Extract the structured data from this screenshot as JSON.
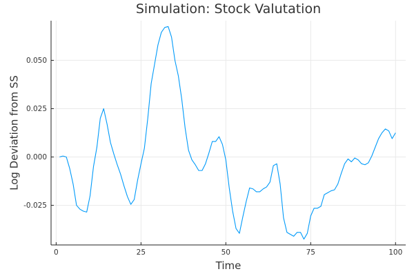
{
  "chart_data": {
    "type": "line",
    "title": "Simulation: Stock Valutation",
    "xlabel": "Time",
    "ylabel": "Log Deviation from SS",
    "xlim": [
      -1.5,
      103
    ],
    "ylim": [
      -0.0455,
      0.0705
    ],
    "xticks": [
      0,
      25,
      50,
      75,
      100
    ],
    "xtick_labels": [
      "0",
      "25",
      "50",
      "75",
      "100"
    ],
    "yticks": [
      -0.025,
      0,
      0.025,
      0.05
    ],
    "ytick_labels": [
      "-0.025",
      "0.000",
      "0.025",
      "0.050"
    ],
    "grid": true,
    "legend": "none",
    "series": [
      {
        "color": "#009af9",
        "x": [
          1,
          2,
          3,
          4,
          5,
          6,
          7,
          8,
          9,
          10,
          11,
          12,
          13,
          14,
          15,
          16,
          17,
          18,
          19,
          20,
          21,
          22,
          23,
          24,
          25,
          26,
          27,
          28,
          29,
          30,
          31,
          32,
          33,
          34,
          35,
          36,
          37,
          38,
          39,
          40,
          41,
          42,
          43,
          44,
          45,
          46,
          47,
          48,
          49,
          50,
          51,
          52,
          53,
          54,
          55,
          56,
          57,
          58,
          59,
          60,
          61,
          62,
          63,
          64,
          65,
          66,
          67,
          68,
          69,
          70,
          71,
          72,
          73,
          74,
          75,
          76,
          77,
          78,
          79,
          80,
          81,
          82,
          83,
          84,
          85,
          86,
          87,
          88,
          89,
          90,
          91,
          92,
          93,
          94,
          95,
          96,
          97,
          98,
          99,
          100
        ],
        "y": [
          0.0,
          0.0005,
          0.0,
          -0.006,
          -0.014,
          -0.025,
          -0.027,
          -0.028,
          -0.0285,
          -0.02,
          -0.005,
          0.005,
          0.02,
          0.025,
          0.017,
          0.0075,
          0.0015,
          -0.004,
          -0.009,
          -0.015,
          -0.0205,
          -0.0245,
          -0.022,
          -0.012,
          -0.0035,
          0.0045,
          0.02,
          0.038,
          0.048,
          0.058,
          0.0645,
          0.067,
          0.0675,
          0.062,
          0.05,
          0.042,
          0.03,
          0.015,
          0.0035,
          -0.0015,
          -0.004,
          -0.007,
          -0.007,
          -0.0035,
          0.002,
          0.008,
          0.008,
          0.0105,
          0.0065,
          -0.0015,
          -0.016,
          -0.028,
          -0.037,
          -0.0395,
          -0.031,
          -0.023,
          -0.016,
          -0.0165,
          -0.018,
          -0.018,
          -0.0165,
          -0.0155,
          -0.013,
          -0.0045,
          -0.0035,
          -0.014,
          -0.0315,
          -0.039,
          -0.04,
          -0.041,
          -0.039,
          -0.039,
          -0.0425,
          -0.0395,
          -0.0305,
          -0.0265,
          -0.0265,
          -0.0255,
          -0.0195,
          -0.0185,
          -0.0175,
          -0.017,
          -0.014,
          -0.0085,
          -0.0035,
          -0.001,
          -0.0025,
          -0.0005,
          -0.0015,
          -0.0035,
          -0.004,
          -0.003,
          0.0005,
          0.005,
          0.0095,
          0.0125,
          0.0145,
          0.0135,
          0.0095,
          0.0125
        ]
      }
    ]
  }
}
